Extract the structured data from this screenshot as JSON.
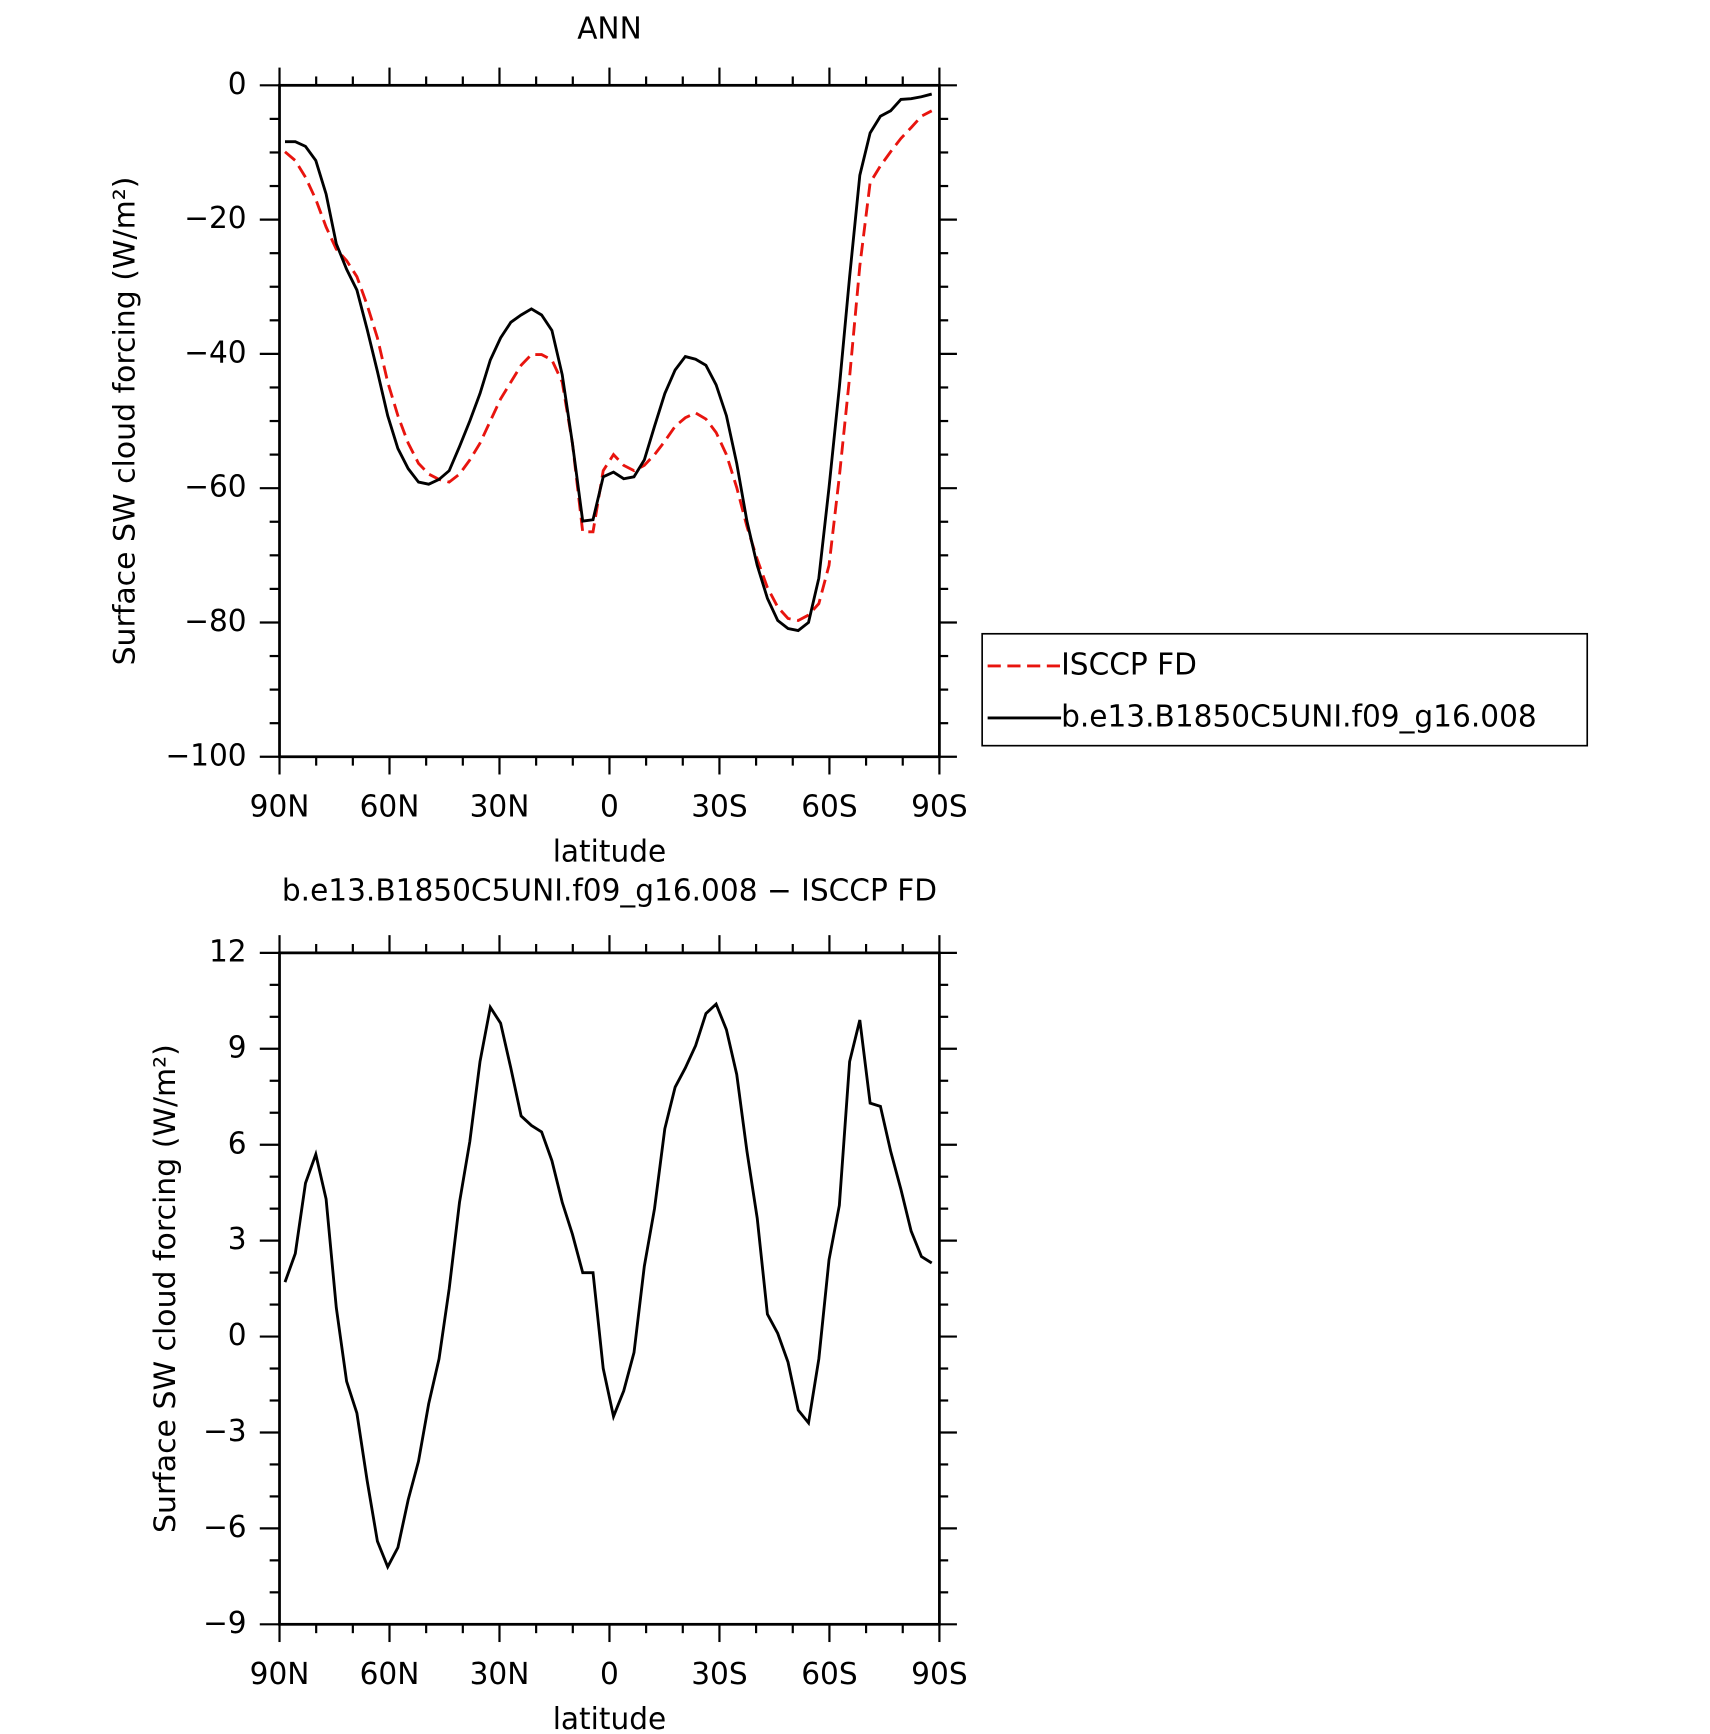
{
  "chart_data": [
    {
      "type": "line",
      "title": "ANN",
      "xlabel": "latitude",
      "ylabel": "Surface SW cloud forcing (W/m²)",
      "x": [
        88.5,
        85.7,
        82.9,
        80.1,
        77.3,
        74.5,
        71.7,
        68.9,
        66.1,
        63.3,
        60.5,
        57.7,
        54.9,
        52.1,
        49.3,
        46.5,
        43.7,
        40.9,
        38.1,
        35.3,
        32.5,
        29.7,
        26.9,
        24.1,
        21.3,
        18.5,
        15.7,
        12.9,
        10.1,
        7.3,
        4.5,
        1.7,
        -1.1,
        -3.9,
        -6.7,
        -9.5,
        -12.3,
        -15.1,
        -17.9,
        -20.7,
        -23.5,
        -26.3,
        -29.1,
        -31.9,
        -34.7,
        -37.5,
        -40.3,
        -43.1,
        -45.9,
        -48.7,
        -51.5,
        -54.3,
        -57.1,
        -59.9,
        -62.7,
        -65.5,
        -68.3,
        -71.1,
        -73.9,
        -76.7,
        -79.5,
        -82.3,
        -85.1,
        -87.9
      ],
      "series": [
        {
          "name": "ISCCP FD",
          "color": "#e8140e",
          "linestyle": "dashed",
          "values": [
            -9.9,
            -11.2,
            -13.7,
            -17.0,
            -21.1,
            -24.4,
            -26.1,
            -28.5,
            -32.7,
            -37.6,
            -44.2,
            -49.2,
            -53.3,
            -56.3,
            -57.9,
            -58.7,
            -59.1,
            -57.9,
            -55.8,
            -53.3,
            -50.0,
            -46.7,
            -44.2,
            -41.7,
            -40.1,
            -40.1,
            -40.9,
            -44.2,
            -53.3,
            -66.5,
            -66.5,
            -57.4,
            -55.0,
            -56.6,
            -57.4,
            -56.6,
            -55.0,
            -53.0,
            -50.8,
            -49.5,
            -48.8,
            -49.7,
            -51.7,
            -55.0,
            -59.9,
            -65.7,
            -70.6,
            -74.8,
            -77.7,
            -79.4,
            -79.7,
            -78.9,
            -77.2,
            -71.5,
            -58.3,
            -43.4,
            -26.9,
            -14.5,
            -12.0,
            -9.9,
            -7.9,
            -6.3,
            -4.6,
            -3.8
          ]
        },
        {
          "name": "b.e13.B1850C5UNI.f09_g16.008",
          "color": "#000000",
          "linestyle": "solid",
          "values": [
            -8.4,
            -8.4,
            -9.1,
            -11.2,
            -16.2,
            -23.6,
            -27.4,
            -30.5,
            -36.3,
            -42.6,
            -49.2,
            -54.1,
            -57.1,
            -59.1,
            -59.4,
            -58.7,
            -57.4,
            -53.8,
            -50.0,
            -45.9,
            -40.9,
            -37.6,
            -35.3,
            -34.2,
            -33.3,
            -34.2,
            -36.5,
            -43.1,
            -53.3,
            -64.9,
            -64.7,
            -58.3,
            -57.6,
            -58.6,
            -58.3,
            -55.8,
            -50.8,
            -45.9,
            -42.4,
            -40.4,
            -40.8,
            -41.7,
            -44.6,
            -49.2,
            -56.3,
            -64.9,
            -71.5,
            -76.4,
            -79.7,
            -80.9,
            -81.2,
            -80.0,
            -73.4,
            -59.9,
            -45.0,
            -28.5,
            -13.4,
            -7.1,
            -4.6,
            -3.8,
            -2.1,
            -2.0,
            -1.7,
            -1.3
          ]
        }
      ],
      "xlim": [
        90,
        -90
      ],
      "xticks": [
        {
          "value": 90,
          "label": "90N"
        },
        {
          "value": 60,
          "label": "60N"
        },
        {
          "value": 30,
          "label": "30N"
        },
        0,
        {
          "value": -30,
          "label": "30S"
        },
        {
          "value": -60,
          "label": "60S"
        },
        {
          "value": -90,
          "label": "90S"
        }
      ],
      "ylim": [
        -100,
        0
      ],
      "yticks": [
        0,
        {
          "value": -20,
          "label": "−20"
        },
        {
          "value": -40,
          "label": "−40"
        },
        {
          "value": -60,
          "label": "−60"
        },
        {
          "value": -80,
          "label": "−80"
        },
        {
          "value": -100,
          "label": "−100"
        }
      ],
      "legend": "right"
    },
    {
      "type": "line",
      "title": "b.e13.B1850C5UNI.f09_g16.008 − ISCCP FD",
      "xlabel": "latitude",
      "ylabel": "Surface SW cloud forcing (W/m²)",
      "x": [
        88.5,
        85.7,
        82.9,
        80.1,
        77.3,
        74.5,
        71.7,
        68.9,
        66.1,
        63.3,
        60.5,
        57.7,
        54.9,
        52.1,
        49.3,
        46.5,
        43.7,
        40.9,
        38.1,
        35.3,
        32.5,
        29.7,
        26.9,
        24.1,
        21.3,
        18.5,
        15.7,
        12.9,
        10.1,
        7.3,
        4.5,
        1.7,
        -1.1,
        -3.9,
        -6.7,
        -9.5,
        -12.3,
        -15.1,
        -17.9,
        -20.7,
        -23.5,
        -26.3,
        -29.1,
        -31.9,
        -34.7,
        -37.5,
        -40.3,
        -43.1,
        -45.9,
        -48.7,
        -51.5,
        -54.3,
        -57.1,
        -59.9,
        -62.7,
        -65.5,
        -68.3,
        -71.1,
        -73.9,
        -76.7,
        -79.5,
        -82.3,
        -85.1,
        -87.9
      ],
      "series": [
        {
          "color": "#000000",
          "linestyle": "solid",
          "values": [
            1.7,
            2.6,
            4.8,
            5.7,
            4.3,
            0.9,
            -1.4,
            -2.4,
            -4.5,
            -6.4,
            -7.2,
            -6.6,
            -5.1,
            -3.9,
            -2.1,
            -0.7,
            1.5,
            4.2,
            6.1,
            8.6,
            10.3,
            9.8,
            8.4,
            6.9,
            6.6,
            6.4,
            5.5,
            4.2,
            3.2,
            2.0,
            2.0,
            -1.0,
            -2.5,
            -1.7,
            -0.5,
            2.2,
            4.0,
            6.5,
            7.8,
            8.4,
            9.1,
            10.1,
            10.4,
            9.6,
            8.2,
            5.8,
            3.7,
            0.7,
            0.1,
            -0.8,
            -2.3,
            -2.7,
            -0.7,
            2.4,
            4.1,
            8.6,
            9.9,
            7.3,
            7.2,
            5.8,
            4.6,
            3.3,
            2.5,
            2.3
          ]
        }
      ],
      "xlim": [
        90,
        -90
      ],
      "xticks": [
        {
          "value": 90,
          "label": "90N"
        },
        {
          "value": 60,
          "label": "60N"
        },
        {
          "value": 30,
          "label": "30N"
        },
        0,
        {
          "value": -30,
          "label": "30S"
        },
        {
          "value": -60,
          "label": "60S"
        },
        {
          "value": -90,
          "label": "90S"
        }
      ],
      "ylim": [
        -9,
        12
      ],
      "yticks": [
        12,
        9,
        6,
        3,
        0,
        {
          "value": -3,
          "label": "−3"
        },
        {
          "value": -6,
          "label": "−6"
        },
        {
          "value": -9,
          "label": "−9"
        }
      ]
    }
  ]
}
